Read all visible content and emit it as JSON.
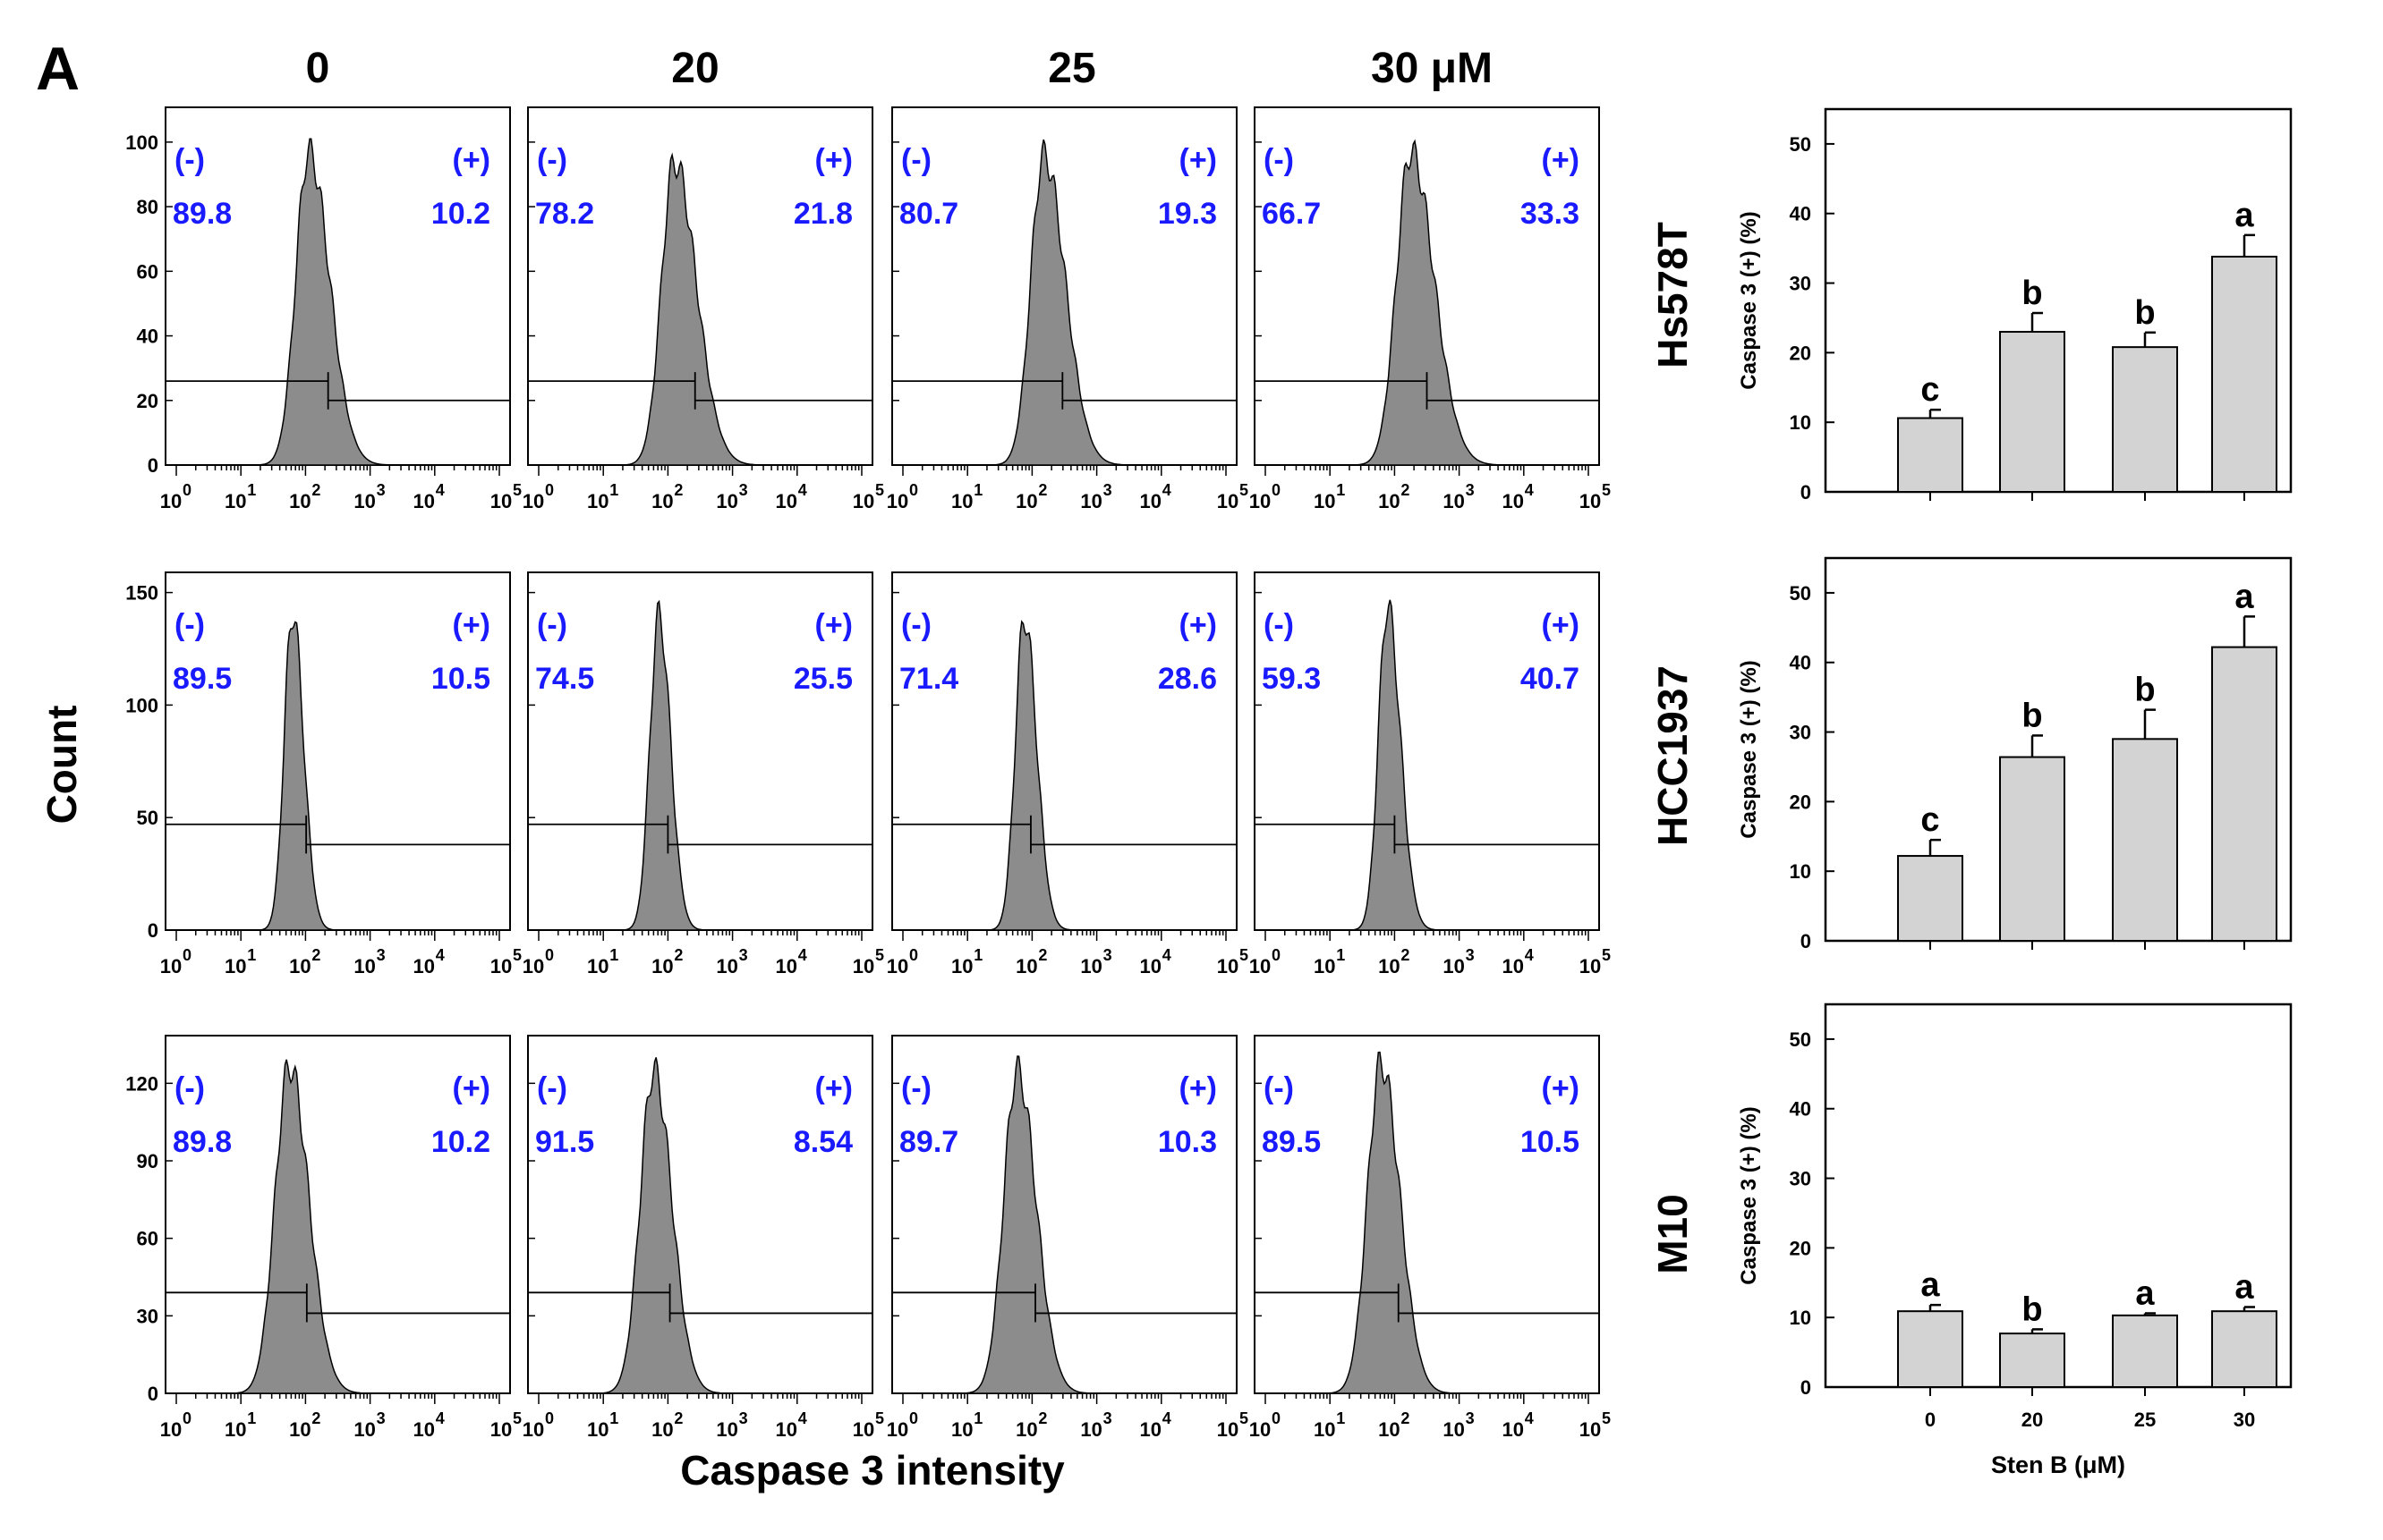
{
  "figure_label": "A",
  "column_headers": [
    "0",
    "20",
    "25",
    "30 μM"
  ],
  "row_labels": [
    "Hs578T",
    "HCC1937",
    "M10"
  ],
  "histogram_ylabel": "Count",
  "histogram_xlabel": "Caspase 3 intensity",
  "histogram_x_ticks": [
    "10",
    "10",
    "10",
    "10",
    "10",
    "10"
  ],
  "histogram_x_tick_exponents": [
    "0",
    "1",
    "2",
    "3",
    "4",
    "5"
  ],
  "gate_labels": {
    "negative": "(-)",
    "positive": "(+)"
  },
  "colors": {
    "gate_text": "#1a1aff",
    "histogram_fill": "#8c8c8c",
    "bar_fill": "#d3d3d3"
  },
  "chart_data": [
    {
      "type": "histogram",
      "cell_line": "Hs578T",
      "y_ticks": [
        "0",
        "20",
        "40",
        "60",
        "80",
        "100"
      ],
      "ylim": [
        0,
        108
      ],
      "xlabel": "Caspase 3 intensity",
      "ylabel": "Count",
      "x_scale": "log10",
      "xlim": [
        1,
        100000
      ],
      "panels": [
        {
          "dose": "0",
          "negative_pct": "89.8",
          "positive_pct": "10.2",
          "peak_log": 2.05,
          "peak_count": 97,
          "sigma_left": 0.2,
          "sigma_right": 0.32,
          "gate_log": 2.35,
          "gate_count": [
            26,
            20
          ]
        },
        {
          "dose": "20",
          "negative_pct": "78.2",
          "positive_pct": "21.8",
          "peak_log": 2.1,
          "peak_count": 94,
          "sigma_left": 0.2,
          "sigma_right": 0.34,
          "gate_log": 2.42,
          "gate_count": [
            26,
            20
          ]
        },
        {
          "dose": "25",
          "negative_pct": "80.7",
          "positive_pct": "19.3",
          "peak_log": 2.18,
          "peak_count": 96,
          "sigma_left": 0.2,
          "sigma_right": 0.33,
          "gate_log": 2.47,
          "gate_count": [
            26,
            20
          ]
        },
        {
          "dose": "30",
          "negative_pct": "66.7",
          "positive_pct": "33.3",
          "peak_log": 2.25,
          "peak_count": 97,
          "sigma_left": 0.22,
          "sigma_right": 0.36,
          "gate_log": 2.5,
          "gate_count": [
            26,
            20
          ]
        }
      ]
    },
    {
      "type": "histogram",
      "cell_line": "HCC1937",
      "y_ticks": [
        "0",
        "50",
        "100",
        "150"
      ],
      "ylim": [
        0,
        155
      ],
      "xlabel": "Caspase 3 intensity",
      "ylabel": "Count",
      "x_scale": "log10",
      "xlim": [
        1,
        100000
      ],
      "panels": [
        {
          "dose": "0",
          "negative_pct": "89.5",
          "positive_pct": "10.5",
          "peak_log": 1.8,
          "peak_count": 141,
          "sigma_left": 0.13,
          "sigma_right": 0.17,
          "gate_log": 2.01,
          "gate_count": [
            47,
            38
          ]
        },
        {
          "dose": "20",
          "negative_pct": "74.5",
          "positive_pct": "25.5",
          "peak_log": 1.86,
          "peak_count": 140,
          "sigma_left": 0.14,
          "sigma_right": 0.18,
          "gate_log": 2.0,
          "gate_count": [
            47,
            38
          ]
        },
        {
          "dose": "25",
          "negative_pct": "71.4",
          "positive_pct": "28.6",
          "peak_log": 1.88,
          "peak_count": 139,
          "sigma_left": 0.14,
          "sigma_right": 0.19,
          "gate_log": 1.98,
          "gate_count": [
            47,
            38
          ]
        },
        {
          "dose": "30",
          "negative_pct": "59.3",
          "positive_pct": "40.7",
          "peak_log": 1.89,
          "peak_count": 144,
          "sigma_left": 0.14,
          "sigma_right": 0.2,
          "gate_log": 2.0,
          "gate_count": [
            47,
            38
          ]
        }
      ]
    },
    {
      "type": "histogram",
      "cell_line": "M10",
      "y_ticks": [
        "0",
        "30",
        "60",
        "90",
        "120"
      ],
      "ylim": [
        0,
        135
      ],
      "xlabel": "Caspase 3 intensity",
      "ylabel": "Count",
      "x_scale": "log10",
      "xlim": [
        1,
        100000
      ],
      "panels": [
        {
          "dose": "0",
          "negative_pct": "89.8",
          "positive_pct": "10.2",
          "peak_log": 1.75,
          "peak_count": 127,
          "sigma_left": 0.22,
          "sigma_right": 0.3,
          "gate_log": 2.02,
          "gate_count": [
            39,
            31
          ]
        },
        {
          "dose": "20",
          "negative_pct": "91.5",
          "positive_pct": "8.54",
          "peak_log": 1.78,
          "peak_count": 125,
          "sigma_left": 0.21,
          "sigma_right": 0.28,
          "gate_log": 2.03,
          "gate_count": [
            39,
            31
          ]
        },
        {
          "dose": "25",
          "negative_pct": "89.7",
          "positive_pct": "10.3",
          "peak_log": 1.77,
          "peak_count": 125,
          "sigma_left": 0.21,
          "sigma_right": 0.29,
          "gate_log": 2.05,
          "gate_count": [
            39,
            31
          ]
        },
        {
          "dose": "30",
          "negative_pct": "89.5",
          "positive_pct": "10.5",
          "peak_log": 1.79,
          "peak_count": 128,
          "sigma_left": 0.21,
          "sigma_right": 0.29,
          "gate_log": 2.06,
          "gate_count": [
            39,
            31
          ]
        }
      ]
    },
    {
      "type": "bar",
      "cell_line": "Hs578T",
      "ylabel": "Caspase 3 (+) (%)",
      "xlabel": "",
      "categories": [
        "0",
        "20",
        "25",
        "30"
      ],
      "values": [
        10.6,
        23.0,
        20.8,
        33.8
      ],
      "errors": [
        1.2,
        2.7,
        2.1,
        3.1
      ],
      "significance": [
        "c",
        "b",
        "b",
        "a"
      ],
      "ylim": [
        0,
        55
      ],
      "y_ticks": [
        "0",
        "10",
        "20",
        "30",
        "40",
        "50"
      ]
    },
    {
      "type": "bar",
      "cell_line": "HCC1937",
      "ylabel": "Caspase 3 (+) (%)",
      "xlabel": "",
      "categories": [
        "0",
        "20",
        "25",
        "30"
      ],
      "values": [
        12.2,
        26.4,
        29.0,
        42.2
      ],
      "errors": [
        2.3,
        3.1,
        4.2,
        4.4
      ],
      "significance": [
        "c",
        "b",
        "b",
        "a"
      ],
      "ylim": [
        0,
        55
      ],
      "y_ticks": [
        "0",
        "10",
        "20",
        "30",
        "40",
        "50"
      ]
    },
    {
      "type": "bar",
      "cell_line": "M10",
      "ylabel": "Caspase 3 (+) (%)",
      "xlabel": "Sten B (μM)",
      "categories": [
        "0",
        "20",
        "25",
        "30"
      ],
      "values": [
        10.9,
        7.7,
        10.3,
        10.9
      ],
      "errors": [
        0.9,
        0.6,
        0.3,
        0.6
      ],
      "significance": [
        "a",
        "b",
        "a",
        "a"
      ],
      "ylim": [
        0,
        55
      ],
      "y_ticks": [
        "0",
        "10",
        "20",
        "30",
        "40",
        "50"
      ]
    }
  ]
}
